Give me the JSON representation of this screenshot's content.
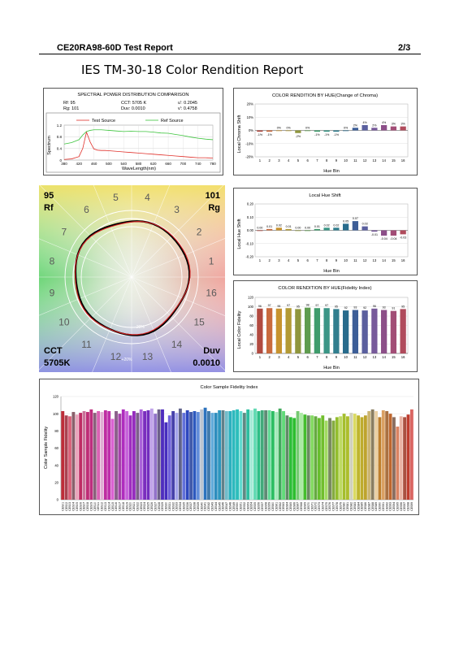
{
  "header": {
    "left": "CE20RA98-60D Test Report",
    "right": "2/3"
  },
  "title": "IES TM-30-18 Color Rendition Report",
  "spd": {
    "title": "SPECTRAL POWER DISTRIBUTION COMPARISON",
    "info": [
      [
        "Rf: 95",
        "CCT: 5705 K",
        "u': 0.2045"
      ],
      [
        "Rg: 101",
        "Duv: 0.0010",
        "v': 0.4758"
      ]
    ],
    "legend": [
      "Test Source",
      "Ref Source"
    ],
    "ylabel": "Spectrum",
    "xlabel": "WaveLength(nm)"
  },
  "vector": {
    "rf_value": "95",
    "rf_label": "Rf",
    "rg_value": "101",
    "rg_label": "Rg",
    "cct_label": "CCT",
    "cct_value": "5705K",
    "duv_label": "Duv",
    "duv_value": "0.0010",
    "bins": [
      "1",
      "2",
      "3",
      "4",
      "5",
      "6",
      "7",
      "8",
      "9",
      "10",
      "11",
      "12",
      "13",
      "14",
      "15",
      "16"
    ],
    "minus20": "-20%",
    "plus20": "+20%"
  },
  "chroma": {
    "title": "COLOR RENDITION BY HUE(Change of Chroma)",
    "ylabel": "Local Chroma Shift",
    "xlabel": "Hue Bin"
  },
  "hue": {
    "title": "Local Hue Shift",
    "ylabel": "Local Hue Shift",
    "xlabel": "Hue Bin"
  },
  "fidelity": {
    "title": "COLOR RENDITION BY HUE(Fidelity Index)",
    "ylabel": "Local Color Fidelity",
    "xlabel": "Hue Bin"
  },
  "cf": {
    "title": "Color Sample Fidelity Index",
    "ylabel": "Color Sample Fidelity"
  },
  "chart_data": [
    {
      "type": "line",
      "title": "SPECTRAL POWER DISTRIBUTION COMPARISON",
      "xlabel": "WaveLength(nm)",
      "ylabel": "Spectrum",
      "xlim": [
        380,
        780
      ],
      "ylim": [
        0,
        1.2
      ],
      "x_ticks": [
        380,
        420,
        460,
        500,
        540,
        580,
        620,
        660,
        700,
        740,
        780
      ],
      "y_ticks": [
        0,
        0.4,
        0.8,
        1.2
      ],
      "x": [
        380,
        400,
        420,
        430,
        440,
        450,
        460,
        470,
        480,
        490,
        500,
        520,
        540,
        560,
        580,
        600,
        620,
        640,
        660,
        680,
        700,
        720,
        740,
        760,
        780
      ],
      "series": [
        {
          "name": "Test Source",
          "color": "#e0302a",
          "values": [
            0.02,
            0.04,
            0.12,
            0.4,
            0.96,
            0.62,
            0.38,
            0.34,
            0.33,
            0.33,
            0.32,
            0.3,
            0.28,
            0.26,
            0.24,
            0.22,
            0.2,
            0.18,
            0.16,
            0.14,
            0.12,
            0.1,
            0.08,
            0.08,
            0.07
          ]
        },
        {
          "name": "Ref Source",
          "color": "#3cc43c",
          "values": [
            0.55,
            0.6,
            0.7,
            0.86,
            0.98,
            1.02,
            1.04,
            1.04,
            1.04,
            1.03,
            1.02,
            1.0,
            0.98,
            0.99,
            0.98,
            0.98,
            0.96,
            0.93,
            0.92,
            0.88,
            0.84,
            0.79,
            0.75,
            0.72,
            0.7
          ]
        }
      ]
    },
    {
      "type": "bar",
      "title": "COLOR RENDITION BY HUE(Change of Chroma)",
      "xlabel": "Hue Bin",
      "ylabel": "Local Chroma Shift",
      "ylim": [
        -20,
        20
      ],
      "y_ticks": [
        "20%",
        "10%",
        "0%",
        "-10%",
        "-20%"
      ],
      "categories": [
        "1",
        "2",
        "3",
        "4",
        "5",
        "6",
        "7",
        "8",
        "9",
        "10",
        "11",
        "12",
        "13",
        "14",
        "15",
        "16"
      ],
      "values": [
        -1,
        -1,
        0,
        0,
        -2,
        0,
        -1,
        -1,
        -1,
        0,
        2,
        4,
        2,
        4,
        3,
        3
      ],
      "labels": [
        "-1%",
        "-1%",
        "0%",
        "0%",
        "-2%",
        "0%",
        "-1%",
        "-1%",
        "-1%",
        "0%",
        "2%",
        "4%",
        "2%",
        "4%",
        "3%",
        "3%"
      ]
    },
    {
      "type": "bar",
      "title": "Local Hue Shift",
      "xlabel": "Hue Bin",
      "ylabel": "Local Hue Shift",
      "ylim": [
        -0.2,
        0.2
      ],
      "y_ticks": [
        "0.20",
        "0.10",
        "0.00",
        "-0.10",
        "-0.20"
      ],
      "categories": [
        "1",
        "2",
        "3",
        "4",
        "5",
        "6",
        "7",
        "8",
        "9",
        "10",
        "11",
        "12",
        "13",
        "14",
        "15",
        "16"
      ],
      "values": [
        0.0,
        0.01,
        0.02,
        0.01,
        0.0,
        0.0,
        0.01,
        0.02,
        0.02,
        0.05,
        0.07,
        0.03,
        -0.01,
        -0.04,
        -0.04,
        -0.03
      ],
      "labels": [
        "0.00",
        "0.01",
        "0.02",
        "0.01",
        "0.00",
        "0.00",
        "0.01",
        "0.02",
        "0.02",
        "0.05",
        "0.07",
        "0.03",
        "-0.01",
        "-0.04",
        "-0.04",
        "-0.03"
      ]
    },
    {
      "type": "bar",
      "title": "COLOR RENDITION BY HUE(Fidelity Index)",
      "xlabel": "Hue Bin",
      "ylabel": "Local Color Fidelity",
      "ylim": [
        0,
        120
      ],
      "y_ticks": [
        0,
        20,
        40,
        60,
        80,
        100,
        120
      ],
      "categories": [
        "1",
        "2",
        "3",
        "4",
        "5",
        "6",
        "7",
        "8",
        "9",
        "10",
        "11",
        "12",
        "13",
        "14",
        "15",
        "16"
      ],
      "values": [
        96,
        97,
        96,
        97,
        95,
        98,
        97,
        97,
        95,
        92,
        93,
        92,
        96,
        93,
        91,
        95
      ]
    },
    {
      "type": "bar",
      "title": "Color Sample Fidelity Index",
      "ylabel": "Color Sample Fidelity",
      "ylim": [
        0,
        120
      ],
      "y_ticks": [
        0,
        20,
        40,
        60,
        80,
        100,
        120
      ],
      "categories": [
        "CES01",
        "CES02",
        "CES03",
        "CES04",
        "CES05",
        "CES06",
        "CES07",
        "CES08",
        "CES09",
        "CES10",
        "CES11",
        "CES12",
        "CES13",
        "CES14",
        "CES15",
        "CES16",
        "CES17",
        "CES18",
        "CES19",
        "CES20",
        "CES21",
        "CES22",
        "CES23",
        "CES24",
        "CES25",
        "CES26",
        "CES27",
        "CES28",
        "CES29",
        "CES30",
        "CES31",
        "CES32",
        "CES33",
        "CES34",
        "CES35",
        "CES36",
        "CES37",
        "CES38",
        "CES39",
        "CES40",
        "CES41",
        "CES42",
        "CES43",
        "CES44",
        "CES45",
        "CES46",
        "CES47",
        "CES48",
        "CES49",
        "CES50",
        "CES51",
        "CES52",
        "CES53",
        "CES54",
        "CES55",
        "CES56",
        "CES57",
        "CES58",
        "CES59",
        "CES60",
        "CES61",
        "CES62",
        "CES63",
        "CES64",
        "CES65",
        "CES66",
        "CES67",
        "CES68",
        "CES69",
        "CES70",
        "CES71",
        "CES72",
        "CES73",
        "CES74",
        "CES75",
        "CES76",
        "CES77",
        "CES78",
        "CES79",
        "CES80",
        "CES81",
        "CES82",
        "CES83",
        "CES84",
        "CES85",
        "CES86",
        "CES87",
        "CES88",
        "CES89",
        "CES90",
        "CES91",
        "CES92",
        "CES93",
        "CES94",
        "CES95",
        "CES96",
        "CES97",
        "CES98",
        "CES99"
      ],
      "values": [
        103,
        98,
        97,
        102,
        99,
        101,
        103,
        102,
        105,
        101,
        103,
        102,
        104,
        103,
        94,
        103,
        100,
        105,
        103,
        98,
        103,
        101,
        105,
        103,
        104,
        106,
        100,
        105,
        105,
        90,
        98,
        103,
        101,
        106,
        101,
        104,
        102,
        103,
        102,
        105,
        107,
        103,
        101,
        101,
        104,
        104,
        103,
        103,
        104,
        105,
        103,
        101,
        105,
        104,
        106,
        103,
        104,
        104,
        104,
        103,
        102,
        106,
        103,
        98,
        96,
        95,
        103,
        101,
        99,
        98,
        98,
        97,
        95,
        98,
        92,
        95,
        92,
        96,
        97,
        100,
        97,
        101,
        100,
        98,
        96,
        98,
        103,
        105,
        103,
        96,
        104,
        103,
        100,
        96,
        85,
        97,
        96,
        99,
        105
      ]
    }
  ]
}
